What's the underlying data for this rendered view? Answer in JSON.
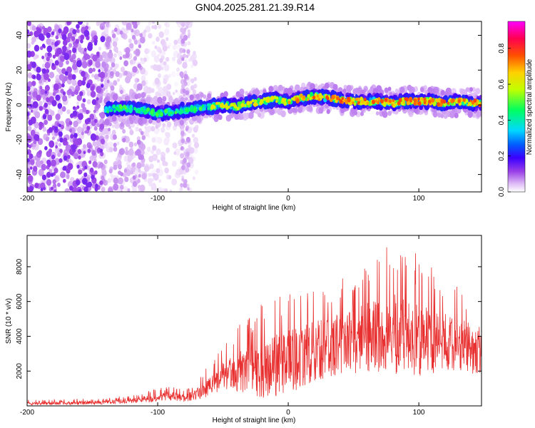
{
  "title": "GN04.2025.281.21.39.R14",
  "chart_data": [
    {
      "type": "heatmap",
      "name": "spectrogram",
      "title": "GN04.2025.281.21.39.R14",
      "xlabel": "Height of straight line (km)",
      "ylabel": "Frequency (Hz)",
      "xlim": [
        -200,
        148
      ],
      "ylim": [
        -50,
        48
      ],
      "xticks": [
        -200,
        -100,
        0,
        100
      ],
      "yticks": [
        -40,
        -20,
        0,
        20,
        40
      ],
      "colorbar": {
        "label": "Normalized spectral amplitude",
        "range": [
          0,
          0.95
        ],
        "ticks": [
          0.0,
          0.2,
          0.4,
          0.6,
          0.8
        ],
        "tick_labels": [
          "0.0",
          "0.2",
          "0.4",
          "0.6",
          "0.8"
        ],
        "colormap": [
          "#ffffff",
          "#dcb8f5",
          "#9a40e8",
          "#3a00ff",
          "#0060ff",
          "#00d8ff",
          "#00ff60",
          "#c0ff00",
          "#ffd000",
          "#ff5000",
          "#ff0050",
          "#ff00ff"
        ]
      },
      "ridge": {
        "description": "dominant frequency vs height",
        "x": [
          -140,
          -130,
          -120,
          -110,
          -100,
          -90,
          -80,
          -70,
          -60,
          -50,
          -40,
          -30,
          -20,
          -10,
          0,
          10,
          20,
          30,
          40,
          50,
          60,
          70,
          80,
          90,
          100,
          110,
          120,
          130,
          140,
          148
        ],
        "y": [
          -3,
          -2,
          -2,
          -3,
          -5,
          -4,
          -3,
          -2,
          -1,
          0,
          -1,
          1,
          2,
          3,
          2,
          4,
          5,
          4,
          3,
          2,
          2,
          2,
          1,
          2,
          2,
          2,
          1,
          2,
          1,
          1
        ]
      }
    },
    {
      "type": "line",
      "name": "snr",
      "xlabel": "Height of straight line (km)",
      "ylabel": "SNR (10 * v/v)",
      "xlim": [
        -200,
        148
      ],
      "ylim": [
        0,
        9800
      ],
      "xticks": [
        -200,
        -100,
        0,
        100
      ],
      "yticks": [
        2000,
        4000,
        6000,
        8000
      ],
      "color": "#e83030",
      "envelope": {
        "x": [
          -200,
          -180,
          -160,
          -140,
          -120,
          -100,
          -90,
          -80,
          -70,
          -60,
          -50,
          -40,
          -30,
          -20,
          -10,
          0,
          10,
          20,
          30,
          40,
          50,
          60,
          70,
          80,
          90,
          100,
          110,
          120,
          130,
          140,
          148
        ],
        "mean": [
          150,
          160,
          180,
          220,
          320,
          500,
          600,
          450,
          700,
          1200,
          1800,
          2000,
          2200,
          2300,
          2500,
          2700,
          3000,
          3300,
          3500,
          3800,
          3900,
          4100,
          4200,
          4300,
          4200,
          4000,
          3900,
          3800,
          3700,
          3500,
          3400
        ],
        "peak": [
          350,
          350,
          420,
          450,
          620,
          1000,
          1200,
          900,
          1400,
          2500,
          3500,
          4500,
          5200,
          6000,
          6500,
          6700,
          7000,
          7200,
          7300,
          7800,
          8000,
          8600,
          8800,
          9800,
          9000,
          8700,
          8000,
          7500,
          7000,
          6800,
          6600
        ]
      }
    }
  ]
}
